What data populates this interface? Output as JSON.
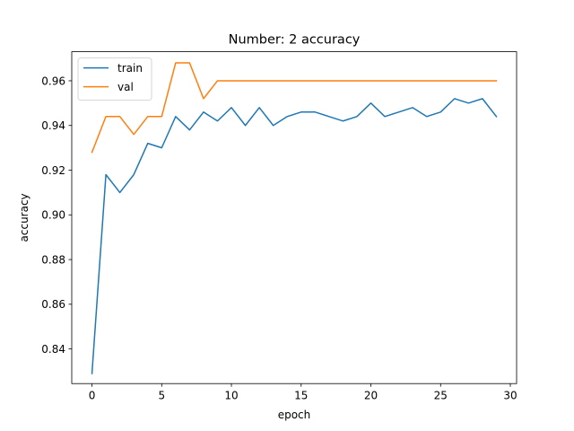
{
  "chart_data": {
    "type": "line",
    "title": "Number: 2 accuracy",
    "xlabel": "epoch",
    "ylabel": "accuracy",
    "xlim": [
      -1.45,
      30.45
    ],
    "ylim": [
      0.8245,
      0.973
    ],
    "xticks": [
      0,
      5,
      10,
      15,
      20,
      25,
      30
    ],
    "xtick_labels": [
      "0",
      "5",
      "10",
      "15",
      "20",
      "25",
      "30"
    ],
    "yticks": [
      0.84,
      0.86,
      0.88,
      0.9,
      0.92,
      0.94,
      0.96
    ],
    "ytick_labels": [
      "0.84",
      "0.86",
      "0.88",
      "0.90",
      "0.92",
      "0.94",
      "0.96"
    ],
    "grid": false,
    "legend": "top-left",
    "x": [
      0,
      1,
      2,
      3,
      4,
      5,
      6,
      7,
      8,
      9,
      10,
      11,
      12,
      13,
      14,
      15,
      16,
      17,
      18,
      19,
      20,
      21,
      22,
      23,
      24,
      25,
      26,
      27,
      28,
      29
    ],
    "series": [
      {
        "name": "train",
        "color": "#1f77b4",
        "values": [
          0.829,
          0.918,
          0.91,
          0.918,
          0.932,
          0.93,
          0.944,
          0.938,
          0.946,
          0.942,
          0.948,
          0.94,
          0.948,
          0.94,
          0.944,
          0.946,
          0.946,
          0.944,
          0.942,
          0.944,
          0.95,
          0.944,
          0.946,
          0.948,
          0.944,
          0.946,
          0.952,
          0.95,
          0.952,
          0.944
        ]
      },
      {
        "name": "val",
        "color": "#ff7f0e",
        "values": [
          0.928,
          0.944,
          0.944,
          0.936,
          0.944,
          0.944,
          0.968,
          0.968,
          0.952,
          0.96,
          0.96,
          0.96,
          0.96,
          0.96,
          0.96,
          0.96,
          0.96,
          0.96,
          0.96,
          0.96,
          0.96,
          0.96,
          0.96,
          0.96,
          0.96,
          0.96,
          0.96,
          0.96,
          0.96,
          0.96
        ]
      }
    ]
  }
}
